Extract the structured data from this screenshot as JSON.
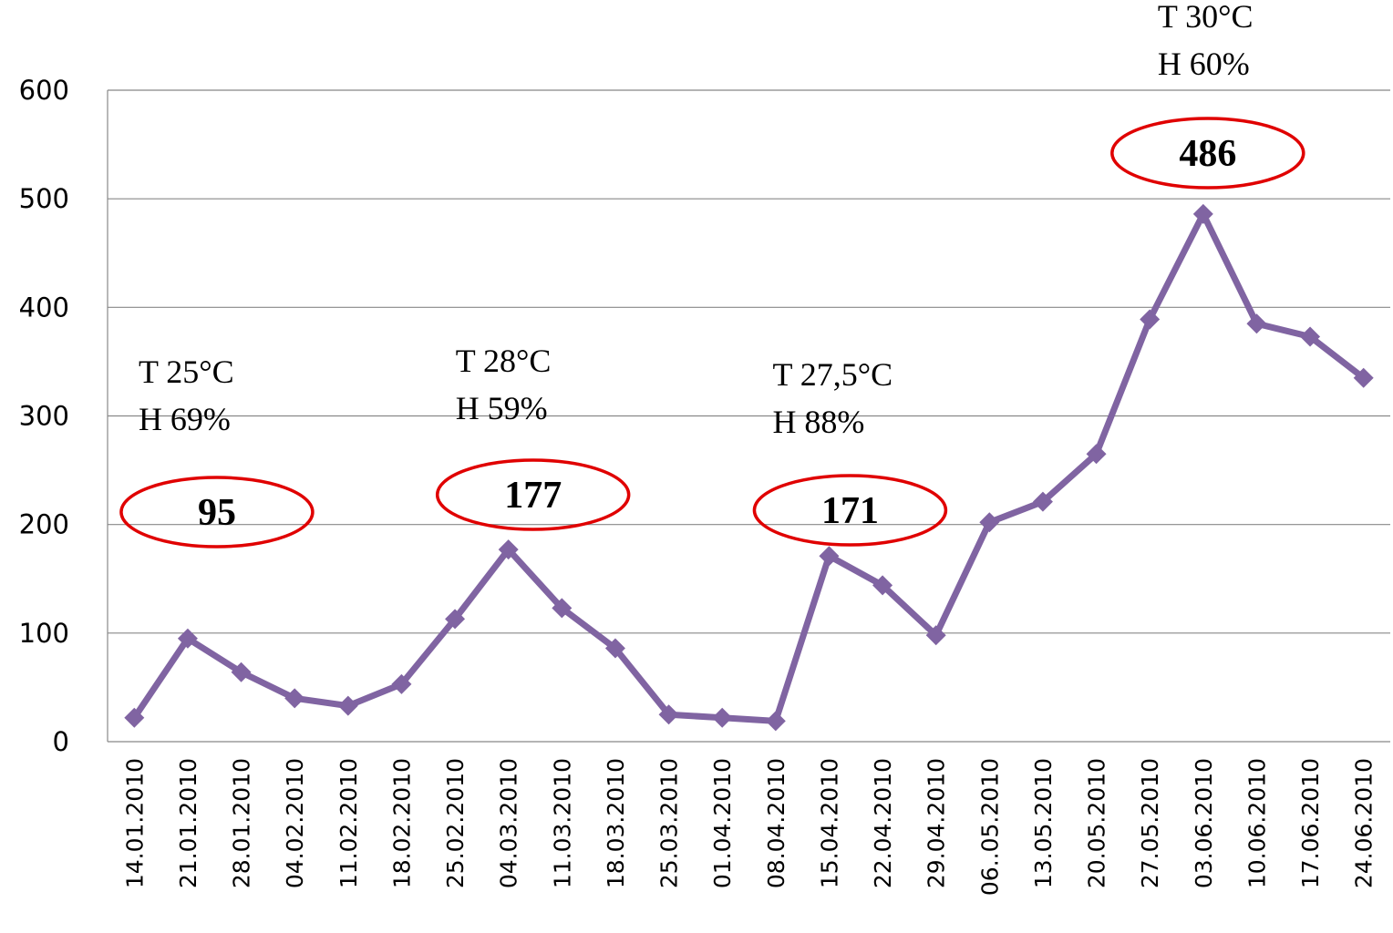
{
  "chart_data": {
    "type": "line",
    "categories": [
      "14.01.2010",
      "21.01.2010",
      "28.01.2010",
      "04.02.2010",
      "11.02.2010",
      "18.02.2010",
      "25.02.2010",
      "04.03.2010",
      "11.03.2010",
      "18.03.2010",
      "25.03.2010",
      "01.04.2010",
      "08.04.2010",
      "15.04.2010",
      "22.04.2010",
      "29.04.2010",
      "06..05.2010",
      "13.05.2010",
      "20.05.2010",
      "27.05.2010",
      "03.06.2010",
      "10.06.2010",
      "17.06.2010",
      "24.06.2010"
    ],
    "series": [
      {
        "color": "#8064a2",
        "values": [
          22,
          95,
          64,
          40,
          33,
          53,
          113,
          177,
          123,
          86,
          25,
          22,
          19,
          171,
          144,
          98,
          202,
          221,
          265,
          389,
          486,
          385,
          373,
          335
        ]
      }
    ],
    "ylim": [
      0,
      600
    ],
    "yticks": [
      0,
      100,
      200,
      300,
      400,
      500,
      600
    ],
    "grid": true,
    "annotations": [
      {
        "x": "21.01.2010",
        "lines": [
          "T 25°C",
          "H 69%"
        ]
      },
      {
        "x": "04.03.2010",
        "lines": [
          "T 28°C",
          "H 59%"
        ]
      },
      {
        "x": "15.04.2010",
        "lines": [
          "T 27,5°C",
          "H 88%"
        ]
      },
      {
        "x": "03.06.2010",
        "lines": [
          "T 30°C",
          "H 60%"
        ]
      }
    ]
  }
}
